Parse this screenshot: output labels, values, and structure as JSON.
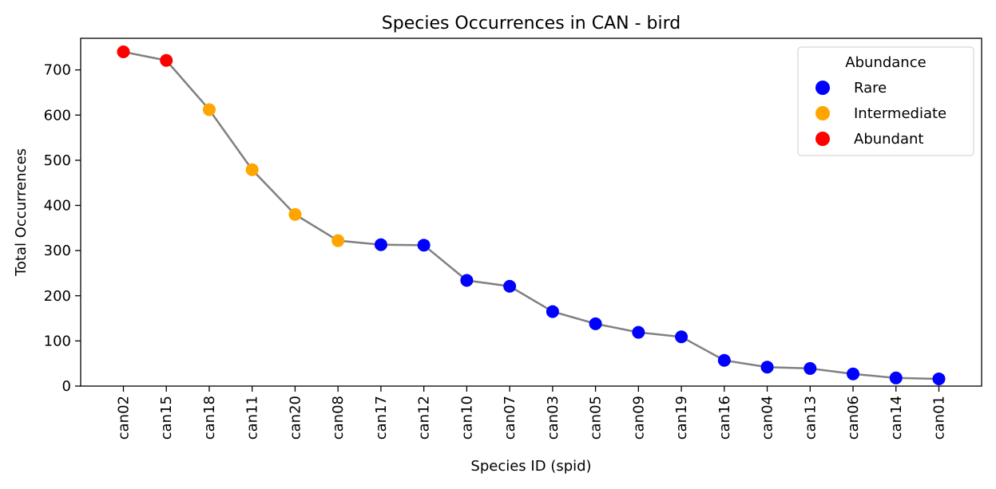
{
  "chart_data": {
    "type": "line",
    "title": "Species Occurrences in CAN - bird",
    "xlabel": "Species ID (spid)",
    "ylabel": "Total Occurrences",
    "ylim": [
      0,
      770
    ],
    "yticks": [
      0,
      100,
      200,
      300,
      400,
      500,
      600,
      700
    ],
    "line_color": "#808080",
    "categories": [
      "can02",
      "can15",
      "can18",
      "can11",
      "can20",
      "can08",
      "can17",
      "can12",
      "can10",
      "can07",
      "can03",
      "can05",
      "can09",
      "can19",
      "can16",
      "can04",
      "can13",
      "can06",
      "can14",
      "can01"
    ],
    "values": [
      740,
      721,
      612,
      479,
      380,
      322,
      313,
      312,
      234,
      221,
      165,
      138,
      119,
      109,
      57,
      42,
      39,
      27,
      18,
      16
    ],
    "abundance": [
      "Abundant",
      "Abundant",
      "Intermediate",
      "Intermediate",
      "Intermediate",
      "Intermediate",
      "Rare",
      "Rare",
      "Rare",
      "Rare",
      "Rare",
      "Rare",
      "Rare",
      "Rare",
      "Rare",
      "Rare",
      "Rare",
      "Rare",
      "Rare",
      "Rare"
    ],
    "legend": {
      "title": "Abundance",
      "location": "upper right",
      "entries": [
        {
          "label": "Rare",
          "color": "#0000ff"
        },
        {
          "label": "Intermediate",
          "color": "#ffa500"
        },
        {
          "label": "Abundant",
          "color": "#ff0000"
        }
      ]
    }
  }
}
